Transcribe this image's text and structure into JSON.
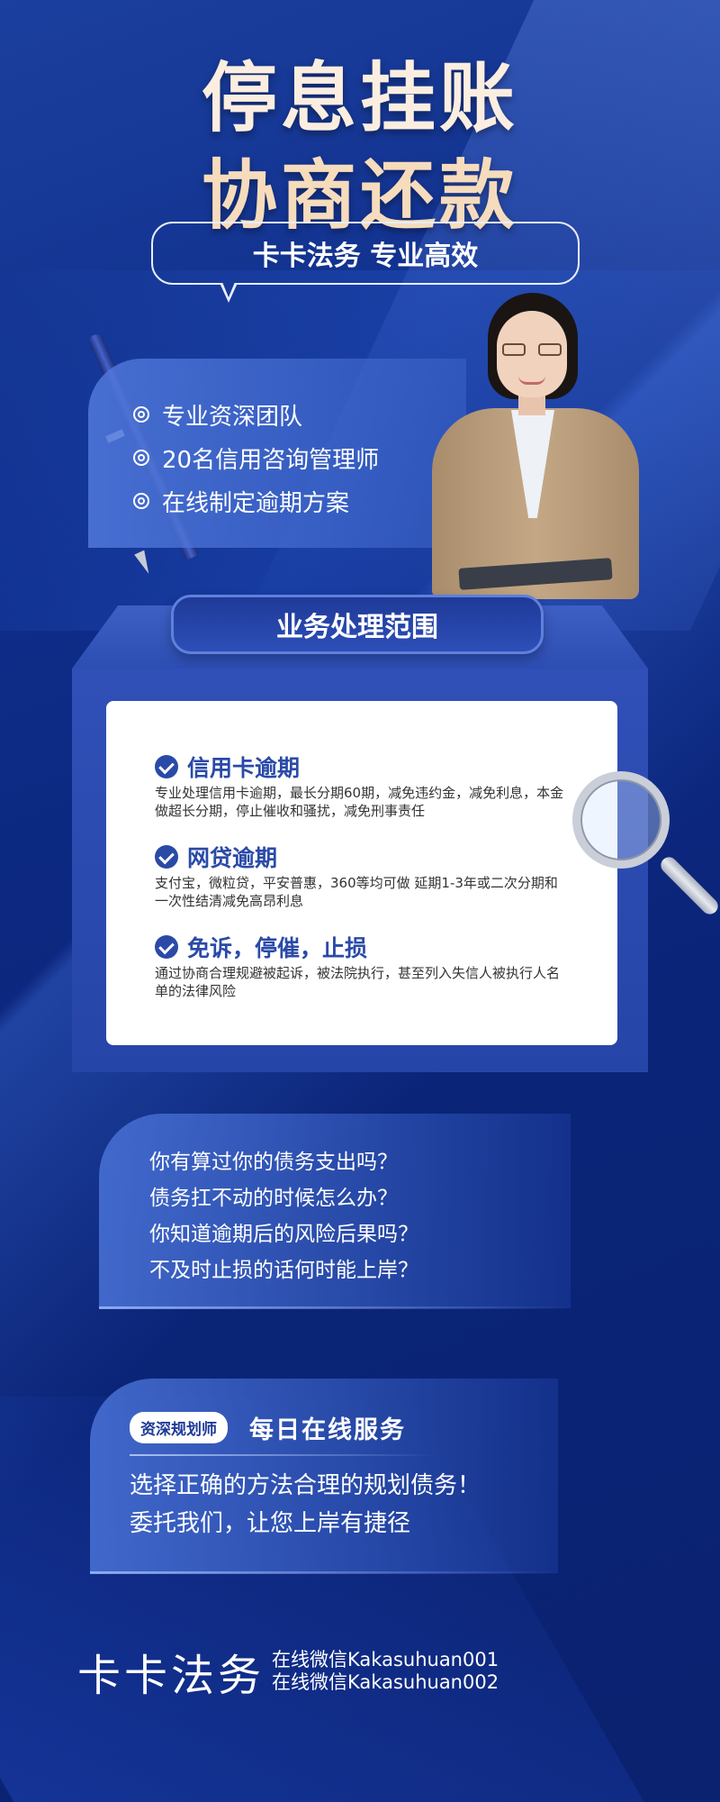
{
  "header": {
    "title_line1": "停息挂账",
    "title_line2": "协商还款",
    "slogan": "卡卡法务 专业高效"
  },
  "features": [
    "专业资深团队",
    "20名信用咨询管理师",
    "在线制定逾期方案"
  ],
  "service": {
    "tab_label": "业务处理范围",
    "items": [
      {
        "title": "信用卡逾期",
        "text": "专业处理信用卡逾期，最长分期60期，减免违约金，减免利息，本金做超长分期，停止催收和骚扰，减免刑事责任"
      },
      {
        "title": "网贷逾期",
        "text": "支付宝，微粒贷，平安普惠，360等均可做 延期1-3年或二次分期和一次性结清减免高昂利息"
      },
      {
        "title": "免诉，停催，止损",
        "text": "通过协商合理规避被起诉，被法院执行，甚至列入失信人被执行人名单的法律风险"
      }
    ]
  },
  "questions": [
    "你有算过你的债务支出吗？",
    "债务扛不动的时候怎么办？",
    "你知道逾期后的风险后果吗？",
    "不及时止损的话何时能上岸？"
  ],
  "daily": {
    "badge": "资深规划师",
    "title": "每日在线服务",
    "lines": [
      "选择正确的方法合理的规划债务！",
      "委托我们，让您上岸有捷径"
    ]
  },
  "footer": {
    "brand": "卡卡法务",
    "wechat1": "在线微信Kakasuhuan001",
    "wechat2": "在线微信Kakasuhuan002"
  }
}
